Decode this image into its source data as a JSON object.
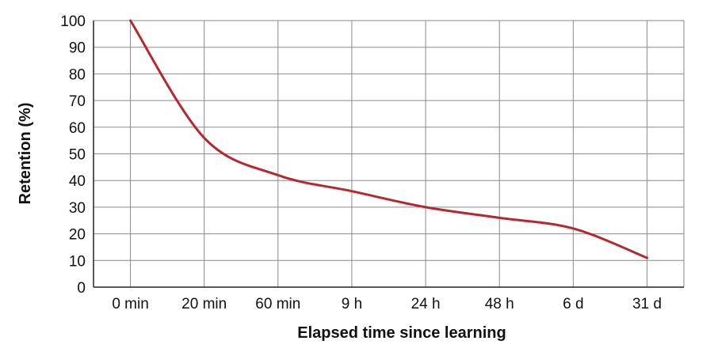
{
  "chart_data": {
    "type": "line",
    "title": "",
    "xlabel": "Elapsed time since learning",
    "ylabel": "Retention (%)",
    "x": [
      "0 min",
      "20 min",
      "60 min",
      "9 h",
      "24 h",
      "48 h",
      "6 d",
      "31 d"
    ],
    "yticks": [
      "0",
      "10",
      "20",
      "30",
      "40",
      "50",
      "60",
      "70",
      "80",
      "90",
      "100"
    ],
    "ylim": [
      0,
      100
    ],
    "grid": true,
    "series": [
      {
        "values": [
          100,
          56,
          42,
          36,
          30,
          26,
          22,
          11
        ],
        "color": "#b5282e"
      }
    ]
  }
}
